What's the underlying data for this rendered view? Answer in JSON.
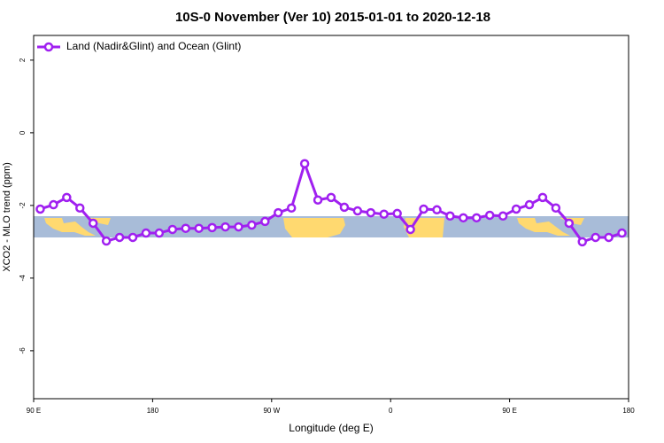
{
  "chart_data": {
    "type": "line",
    "title": "10S-0 November (Ver 10)   2015-01-01 to 2020-12-18",
    "xlabel": "Longitude (deg E)",
    "ylabel": "XCO2 - MLO trend (ppm)",
    "x": [
      95,
      105,
      115,
      125,
      135,
      145,
      155,
      165,
      175,
      185,
      195,
      205,
      215,
      225,
      235,
      245,
      255,
      265,
      275,
      285,
      295,
      305,
      315,
      325,
      335,
      345,
      355,
      365,
      375,
      385,
      395,
      405,
      415,
      425,
      435,
      445,
      455,
      465,
      475,
      485,
      495,
      505,
      515,
      525,
      535
    ],
    "series": [
      {
        "name": "Land (Nadir&Glint) and Ocean (Glint)",
        "color": "#a020f0",
        "values": [
          -2.1,
          -1.98,
          -1.78,
          -2.07,
          -2.49,
          -2.98,
          -2.88,
          -2.88,
          -2.76,
          -2.76,
          -2.66,
          -2.63,
          -2.63,
          -2.61,
          -2.59,
          -2.59,
          -2.54,
          -2.44,
          -2.2,
          -2.07,
          -0.85,
          -1.85,
          -1.78,
          -2.05,
          -2.15,
          -2.2,
          -2.24,
          -2.22,
          -2.66,
          -2.1,
          -2.12,
          -2.29,
          -2.34,
          -2.34,
          -2.27,
          -2.29,
          -2.1,
          -1.98,
          -1.78,
          -2.07,
          -2.49,
          -3.0,
          -2.88,
          -2.88,
          -2.76
        ]
      }
    ],
    "xlim": [
      90,
      540
    ],
    "xticks": [
      {
        "value": 90,
        "label": "90 E"
      },
      180,
      {
        "value": 270,
        "label": "90 W"
      },
      {
        "value": 360,
        "label": "0"
      },
      {
        "value": 450,
        "label": "90 E"
      },
      {
        "value": 540,
        "label": "180"
      }
    ],
    "ylim": [
      -7.32,
      2.68
    ],
    "yticks": [
      -6,
      -4,
      -2,
      0,
      2
    ],
    "legend": "top-left"
  }
}
